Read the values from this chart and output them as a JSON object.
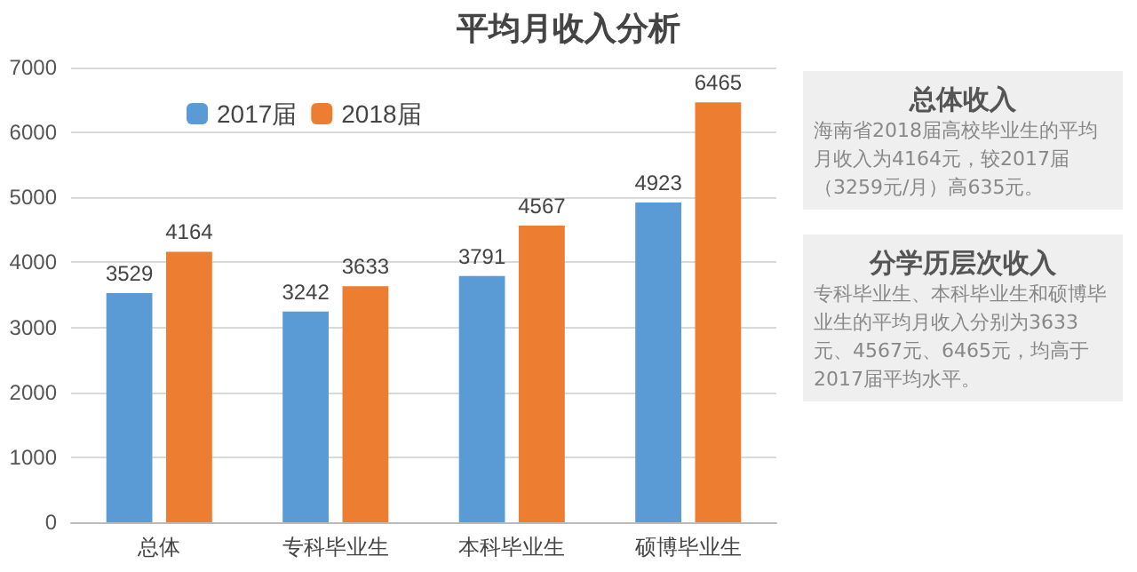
{
  "chart_data": {
    "type": "bar",
    "title": "平均月收入分析",
    "categories": [
      "总体",
      "专科毕业生",
      "本科毕业生",
      "硕博毕业生"
    ],
    "series": [
      {
        "name": "2017届",
        "color": "#5b9bd5",
        "values": [
          3529,
          3242,
          3791,
          4923
        ]
      },
      {
        "name": "2018届",
        "color": "#ed7d31",
        "values": [
          4164,
          3633,
          4567,
          6465
        ]
      }
    ],
    "ylim": [
      0,
      7000
    ],
    "yticks": [
      0,
      1000,
      2000,
      3000,
      4000,
      5000,
      6000,
      7000
    ],
    "grid": "y",
    "legend": "top left",
    "data_labels": true,
    "annotations": [
      "总体收入",
      "海南省2018届高校毕业生的平均月收入为4164元，较2017届（3259元/月）高635元。",
      "分学历层次收入",
      "专科毕业生、本科毕业生和硕博毕业生的平均月收入分别为3633元、4567元、6465元，均高于2017届平均水平。"
    ]
  }
}
